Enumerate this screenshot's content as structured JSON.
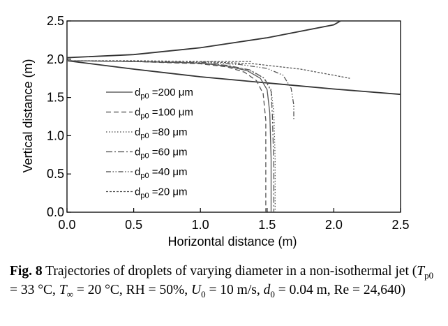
{
  "chart_data": {
    "type": "line",
    "xlabel": "Horizontal distance (m)",
    "ylabel": "Vertical distance (m)",
    "xlim": [
      0.0,
      2.5
    ],
    "ylim": [
      0.0,
      2.5
    ],
    "xticks": [
      "0.0",
      "0.5",
      "1.0",
      "1.5",
      "2.0",
      "2.5"
    ],
    "yticks": [
      "0.0",
      "0.5",
      "1.0",
      "1.5",
      "2.0",
      "2.5"
    ],
    "grid": false,
    "legend_position": "left",
    "legend_prefix": "d",
    "legend_subscript": "p0",
    "boundaries": [
      {
        "x": [
          0.0,
          0.5,
          1.0,
          1.5,
          2.0,
          2.05
        ],
        "y": [
          2.02,
          2.06,
          2.15,
          2.28,
          2.45,
          2.5
        ]
      },
      {
        "x": [
          0.0,
          0.5,
          1.0,
          1.5,
          2.0,
          2.5
        ],
        "y": [
          1.98,
          1.87,
          1.77,
          1.69,
          1.61,
          1.54
        ]
      }
    ],
    "series": [
      {
        "name": "=200 μm",
        "style": "solid",
        "x": [
          0.0,
          0.5,
          1.0,
          1.2,
          1.35,
          1.45,
          1.5,
          1.52,
          1.53,
          1.53
        ],
        "y": [
          1.98,
          1.97,
          1.95,
          1.91,
          1.85,
          1.75,
          1.6,
          1.3,
          0.7,
          0.0
        ]
      },
      {
        "name": "=100 μm",
        "style": "dashed",
        "x": [
          0.0,
          0.5,
          1.0,
          1.2,
          1.33,
          1.42,
          1.47,
          1.49,
          1.49,
          1.49
        ],
        "y": [
          1.98,
          1.97,
          1.94,
          1.9,
          1.83,
          1.72,
          1.55,
          1.2,
          0.6,
          0.0
        ]
      },
      {
        "name": "=80 μm",
        "style": "dotted",
        "x": [
          0.0,
          0.5,
          1.0,
          1.2,
          1.36,
          1.47,
          1.53,
          1.55,
          1.56,
          1.56
        ],
        "y": [
          1.98,
          1.97,
          1.95,
          1.91,
          1.86,
          1.76,
          1.6,
          1.3,
          0.7,
          0.0
        ]
      },
      {
        "name": "=60 μm",
        "style": "dashdot",
        "x": [
          0.0,
          0.5,
          1.0,
          1.2,
          1.37,
          1.48,
          1.53,
          1.54,
          1.55,
          1.55
        ],
        "y": [
          1.98,
          1.97,
          1.95,
          1.92,
          1.86,
          1.75,
          1.58,
          1.25,
          0.6,
          0.0
        ]
      },
      {
        "name": "=40 μm",
        "style": "dashdotdot",
        "x": [
          0.0,
          0.5,
          1.0,
          1.3,
          1.5,
          1.62,
          1.68,
          1.7,
          1.7
        ],
        "y": [
          1.98,
          1.97,
          1.96,
          1.93,
          1.88,
          1.79,
          1.62,
          1.4,
          1.2
        ]
      },
      {
        "name": "=20 μm",
        "style": "densedash",
        "x": [
          0.0,
          0.5,
          1.0,
          1.4,
          1.75,
          2.0,
          2.12
        ],
        "y": [
          1.98,
          1.98,
          1.97,
          1.94,
          1.87,
          1.79,
          1.75
        ]
      },
      {
        "name": "",
        "style": "densedash",
        "x": [
          1.0,
          1.2,
          1.38
        ],
        "y": [
          1.97,
          1.97,
          1.97
        ]
      }
    ]
  },
  "caption": {
    "fig_label": "Fig. 8",
    "text_1": " Trajectories of droplets of varying diameter in a non-isothermal jet (",
    "t_p0": "T",
    "t_p0_sub": "p0",
    "t_p0_val": " = 33 °C, ",
    "t_inf": "T",
    "t_inf_sub": "∞",
    "t_inf_val": " = 20 °C, RH = 50%, ",
    "u0": "U",
    "u0_sub": "0",
    "u0_val": " = 10 m/s, ",
    "d0": "d",
    "d0_sub": "0",
    "d0_val": " = 0.04 m, Re = 24,640)"
  }
}
